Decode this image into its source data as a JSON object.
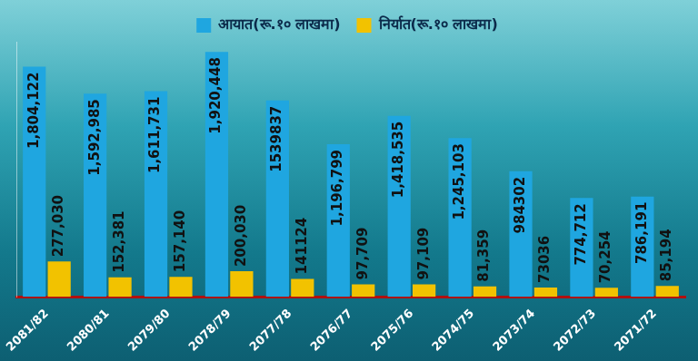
{
  "chart_data": {
    "type": "bar",
    "categories": [
      "2081/82",
      "2080/81",
      "2079/80",
      "2078/79",
      "2077/78",
      "2076/77",
      "2075/76",
      "2074/75",
      "2073/74",
      "2072/73",
      "2071/72"
    ],
    "series": [
      {
        "name": "आयात(रू.१० लाखमा)",
        "color": "#1fa6e0",
        "values": [
          1804122,
          1592985,
          1611731,
          1920448,
          1539837,
          1196799,
          1418535,
          1245103,
          984302,
          774712,
          786191
        ],
        "value_labels": [
          "1,804,122",
          "1,592,985",
          "1,611,731",
          "1,920,448",
          "1539837",
          "1,196,799",
          "1,418,535",
          "1,245,103",
          "984302",
          "774,712",
          "786,191"
        ]
      },
      {
        "name": "निर्यात(रू.१० लाखमा)",
        "color": "#f2c200",
        "values": [
          277030,
          152381,
          157140,
          200030,
          141124,
          97709,
          97109,
          81359,
          73036,
          70254,
          85194
        ],
        "value_labels": [
          "277,030",
          "152,381",
          "157,140",
          "200,030",
          "141124",
          "97,709",
          "97,109",
          "81,359",
          "73036",
          "70,254",
          "85,194"
        ]
      }
    ],
    "ylim": [
      0,
      2000000
    ],
    "grid": false,
    "legend": "top",
    "data_labels": true,
    "tick_labels": "x"
  }
}
